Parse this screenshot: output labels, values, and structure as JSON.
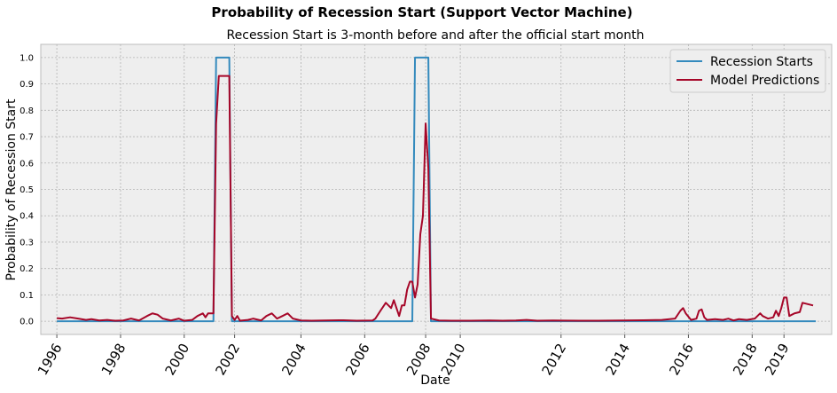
{
  "chart_data": {
    "type": "line",
    "title": "Probability of Recession Start (Support Vector Machine)",
    "subtitle": "Recession Start is 3-month before and after the official start month",
    "xlabel": "Date",
    "ylabel": "Probability of Recession Start",
    "x_range": [
      "1995-07-01",
      "2020-05-01"
    ],
    "ylim": [
      -0.05,
      1.05
    ],
    "yticks": [
      "0.0",
      "0.1",
      "0.2",
      "0.3",
      "0.4",
      "0.5",
      "0.6",
      "0.7",
      "0.8",
      "0.9",
      "1.0"
    ],
    "xticks": [
      {
        "date": "1996-01-01",
        "label": "1996"
      },
      {
        "date": "1998-01-01",
        "label": "1998"
      },
      {
        "date": "2000-01-01",
        "label": "2000"
      },
      {
        "date": "2001-08-01",
        "label": "2002"
      },
      {
        "date": "2003-09-01",
        "label": "2004"
      },
      {
        "date": "2005-09-01",
        "label": "2006"
      },
      {
        "date": "2007-08-01",
        "label": "2008"
      },
      {
        "date": "2008-09-01",
        "label": "2010"
      },
      {
        "date": "2011-11-01",
        "label": "2012"
      },
      {
        "date": "2013-11-01",
        "label": "2014"
      },
      {
        "date": "2015-11-01",
        "label": "2016"
      },
      {
        "date": "2017-11-01",
        "label": "2018"
      },
      {
        "date": "2018-11-01",
        "label": "2019"
      }
    ],
    "grid": true,
    "legend_position": "top-right",
    "series": [
      {
        "name": "Recession Starts",
        "color": "#348ABD",
        "points": [
          [
            "1996-01-01",
            0.0
          ],
          [
            "2000-12-01",
            0.0
          ],
          [
            "2001-01-01",
            1.0
          ],
          [
            "2001-06-01",
            1.0
          ],
          [
            "2001-07-01",
            0.0
          ],
          [
            "2007-03-01",
            0.0
          ],
          [
            "2007-04-01",
            1.0
          ],
          [
            "2007-09-01",
            1.0
          ],
          [
            "2007-10-01",
            0.0
          ],
          [
            "2019-11-01",
            0.0
          ]
        ]
      },
      {
        "name": "Model Predictions",
        "color": "#A60628",
        "points": [
          [
            "1996-01-01",
            0.012
          ],
          [
            "1996-03-01",
            0.01
          ],
          [
            "1996-06-01",
            0.015
          ],
          [
            "1996-09-01",
            0.01
          ],
          [
            "1996-12-01",
            0.005
          ],
          [
            "1997-02-01",
            0.008
          ],
          [
            "1997-05-01",
            0.003
          ],
          [
            "1997-08-01",
            0.005
          ],
          [
            "1997-11-01",
            0.002
          ],
          [
            "1998-02-01",
            0.003
          ],
          [
            "1998-05-01",
            0.01
          ],
          [
            "1998-08-01",
            0.003
          ],
          [
            "1998-11-01",
            0.02
          ],
          [
            "1999-01-01",
            0.03
          ],
          [
            "1999-03-01",
            0.025
          ],
          [
            "1999-05-01",
            0.01
          ],
          [
            "1999-08-01",
            0.003
          ],
          [
            "1999-11-01",
            0.01
          ],
          [
            "2000-01-01",
            0.002
          ],
          [
            "2000-04-01",
            0.005
          ],
          [
            "2000-06-01",
            0.02
          ],
          [
            "2000-08-01",
            0.03
          ],
          [
            "2000-09-01",
            0.015
          ],
          [
            "2000-10-01",
            0.03
          ],
          [
            "2000-12-01",
            0.03
          ],
          [
            "2001-01-01",
            0.75
          ],
          [
            "2001-02-01",
            0.93
          ],
          [
            "2001-06-01",
            0.93
          ],
          [
            "2001-07-01",
            0.02
          ],
          [
            "2001-08-01",
            0.005
          ],
          [
            "2001-09-01",
            0.02
          ],
          [
            "2001-10-01",
            0.002
          ],
          [
            "2002-01-01",
            0.005
          ],
          [
            "2002-03-01",
            0.01
          ],
          [
            "2002-06-01",
            0.003
          ],
          [
            "2002-08-01",
            0.02
          ],
          [
            "2002-10-01",
            0.03
          ],
          [
            "2002-12-01",
            0.01
          ],
          [
            "2003-02-01",
            0.02
          ],
          [
            "2003-04-01",
            0.03
          ],
          [
            "2003-06-01",
            0.01
          ],
          [
            "2003-09-01",
            0.003
          ],
          [
            "2004-01-01",
            0.002
          ],
          [
            "2004-06-01",
            0.003
          ],
          [
            "2005-01-01",
            0.004
          ],
          [
            "2005-06-01",
            0.002
          ],
          [
            "2005-12-01",
            0.003
          ],
          [
            "2006-01-01",
            0.01
          ],
          [
            "2006-03-01",
            0.04
          ],
          [
            "2006-05-01",
            0.07
          ],
          [
            "2006-06-01",
            0.06
          ],
          [
            "2006-07-01",
            0.05
          ],
          [
            "2006-08-01",
            0.08
          ],
          [
            "2006-10-01",
            0.02
          ],
          [
            "2006-11-01",
            0.06
          ],
          [
            "2006-12-01",
            0.06
          ],
          [
            "2007-01-01",
            0.12
          ],
          [
            "2007-02-01",
            0.15
          ],
          [
            "2007-03-01",
            0.15
          ],
          [
            "2007-04-01",
            0.09
          ],
          [
            "2007-05-01",
            0.14
          ],
          [
            "2007-06-01",
            0.33
          ],
          [
            "2007-07-01",
            0.4
          ],
          [
            "2007-08-01",
            0.75
          ],
          [
            "2007-09-01",
            0.58
          ],
          [
            "2007-10-01",
            0.01
          ],
          [
            "2008-01-01",
            0.003
          ],
          [
            "2008-06-01",
            0.002
          ],
          [
            "2009-01-01",
            0.002
          ],
          [
            "2009-08-01",
            0.003
          ],
          [
            "2010-01-01",
            0.002
          ],
          [
            "2010-06-01",
            0.003
          ],
          [
            "2010-10-01",
            0.005
          ],
          [
            "2011-02-01",
            0.002
          ],
          [
            "2011-08-01",
            0.003
          ],
          [
            "2012-06-01",
            0.002
          ],
          [
            "2013-01-01",
            0.002
          ],
          [
            "2013-10-01",
            0.003
          ],
          [
            "2014-06-01",
            0.004
          ],
          [
            "2015-01-01",
            0.005
          ],
          [
            "2015-06-01",
            0.01
          ],
          [
            "2015-08-01",
            0.04
          ],
          [
            "2015-09-01",
            0.05
          ],
          [
            "2015-10-01",
            0.03
          ],
          [
            "2015-12-01",
            0.005
          ],
          [
            "2016-02-01",
            0.01
          ],
          [
            "2016-03-01",
            0.04
          ],
          [
            "2016-04-01",
            0.045
          ],
          [
            "2016-05-01",
            0.015
          ],
          [
            "2016-06-01",
            0.005
          ],
          [
            "2016-09-01",
            0.008
          ],
          [
            "2016-12-01",
            0.005
          ],
          [
            "2017-02-01",
            0.01
          ],
          [
            "2017-04-01",
            0.003
          ],
          [
            "2017-06-01",
            0.008
          ],
          [
            "2017-09-01",
            0.005
          ],
          [
            "2017-12-01",
            0.01
          ],
          [
            "2018-01-01",
            0.02
          ],
          [
            "2018-02-01",
            0.03
          ],
          [
            "2018-03-01",
            0.02
          ],
          [
            "2018-05-01",
            0.01
          ],
          [
            "2018-07-01",
            0.015
          ],
          [
            "2018-08-01",
            0.04
          ],
          [
            "2018-09-01",
            0.02
          ],
          [
            "2018-10-01",
            0.05
          ],
          [
            "2018-11-01",
            0.09
          ],
          [
            "2018-12-01",
            0.09
          ],
          [
            "2019-01-01",
            0.02
          ],
          [
            "2019-03-01",
            0.03
          ],
          [
            "2019-05-01",
            0.035
          ],
          [
            "2019-06-01",
            0.07
          ],
          [
            "2019-08-01",
            0.065
          ],
          [
            "2019-10-01",
            0.06
          ]
        ]
      }
    ]
  }
}
